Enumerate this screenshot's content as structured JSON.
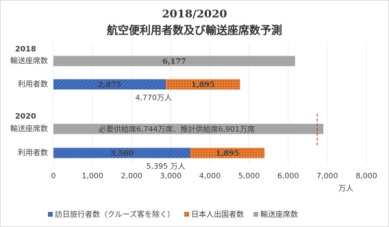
{
  "chart_data": {
    "type": "bar",
    "orientation": "horizontal",
    "stacked": true,
    "title": "2018/2020",
    "subtitle": "航空便利用者数及び輸送座席数予測",
    "groups": [
      "2018",
      "2020"
    ],
    "categories": [
      "輸送座席数",
      "利用者数",
      "輸送座席数",
      "利用者数"
    ],
    "series": [
      {
        "name": "訪日旅行者数（クルーズ客を除く）",
        "color": "#4472c4",
        "values": [
          null,
          2875,
          null,
          3500
        ],
        "value_labels": [
          null,
          "2,875",
          null,
          "3,500"
        ]
      },
      {
        "name": "日本人出国者数",
        "color": "#ed7d31",
        "values": [
          null,
          1895,
          null,
          1895
        ],
        "value_labels": [
          null,
          "1,895",
          null,
          "1,895"
        ]
      },
      {
        "name": "輸送座席数",
        "color": "#a5a5a5",
        "values": [
          6177,
          null,
          6901,
          null
        ],
        "value_labels": [
          "6,177",
          null,
          null,
          null
        ]
      }
    ],
    "totals": [
      null,
      {
        "value": 4770,
        "label": "4,770万人"
      },
      null,
      {
        "value": 5395,
        "label": "5,395 万人"
      }
    ],
    "annotation": "必要供給席6,744万席、推計供給席6,901万席",
    "reference_line": {
      "value": 6744,
      "color": "#e03030"
    },
    "xlim": [
      0,
      8000
    ],
    "xticks": [
      0,
      {
        "value": 1000,
        "label": "1,000"
      },
      {
        "value": 2000,
        "label": "2,000"
      },
      {
        "value": 3000,
        "label": "3,000"
      },
      {
        "value": 4000,
        "label": "4,000"
      },
      {
        "value": 5000,
        "label": "5,000"
      },
      {
        "value": 6000,
        "label": "6,000"
      },
      {
        "value": 7000,
        "label": "7,000"
      },
      {
        "value": 8000,
        "label": "8,000"
      }
    ],
    "x_label": "万人",
    "grid": true,
    "legend": "bottom"
  }
}
